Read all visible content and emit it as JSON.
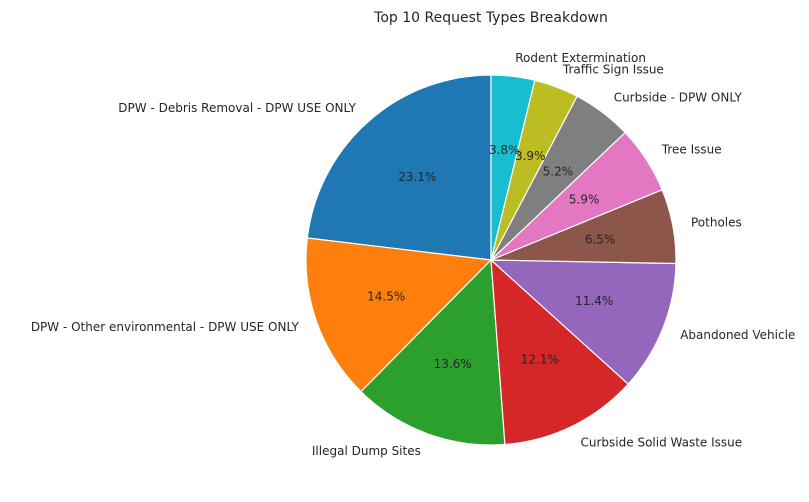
{
  "chart_data": {
    "type": "pie",
    "title": "Top 10 Request Types Breakdown",
    "start_angle_deg": 90,
    "direction": "counterclockwise",
    "slices": [
      {
        "label": "DPW - Debris Removal - DPW USE ONLY",
        "value": 23.1,
        "pct_label": "23.1%",
        "color": "#1f77b4"
      },
      {
        "label": "DPW - Other environmental - DPW USE ONLY",
        "value": 14.5,
        "pct_label": "14.5%",
        "color": "#ff7f0e"
      },
      {
        "label": "Illegal Dump Sites",
        "value": 13.6,
        "pct_label": "13.6%",
        "color": "#2ca02c"
      },
      {
        "label": "Curbside Solid Waste Issue",
        "value": 12.1,
        "pct_label": "12.1%",
        "color": "#d62728"
      },
      {
        "label": "Abandoned Vehicle",
        "value": 11.4,
        "pct_label": "11.4%",
        "color": "#9467bd"
      },
      {
        "label": "Potholes",
        "value": 6.5,
        "pct_label": "6.5%",
        "color": "#8c564b"
      },
      {
        "label": "Tree Issue",
        "value": 5.9,
        "pct_label": "5.9%",
        "color": "#e377c2"
      },
      {
        "label": "Curbside - DPW ONLY",
        "value": 5.2,
        "pct_label": "5.2%",
        "color": "#7f7f7f"
      },
      {
        "label": "Traffic Sign Issue",
        "value": 3.9,
        "pct_label": "3.9%",
        "color": "#bcbd22"
      },
      {
        "label": "Rodent Extermination",
        "value": 3.8,
        "pct_label": "3.8%",
        "color": "#17becf"
      }
    ]
  }
}
